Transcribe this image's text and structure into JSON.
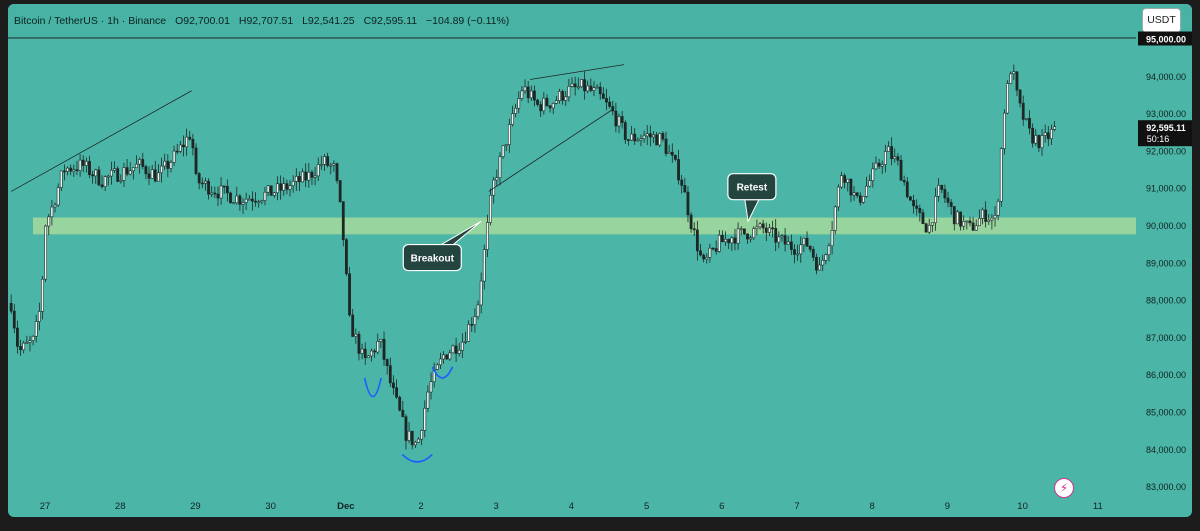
{
  "header": {
    "symbol": "Bitcoin / TetherUS · 1h · Binance",
    "open": "O92,700.01",
    "high": "H92,707.51",
    "low": "L92,541.25",
    "close": "C92,595.11",
    "change": "−104.89 (−0.11%)",
    "currency_button": "USDT"
  },
  "annotations": {
    "breakout": "Breakout",
    "retest": "Retest"
  },
  "price_marker": {
    "price": "92,595.11",
    "countdown": "50:16"
  },
  "colors": {
    "background": "#4bb6a8",
    "zone": "#a6d99b",
    "candle": "#1d2724",
    "curve": "#1f5cff",
    "price_label_bg": "#111111"
  },
  "icons": {
    "flash": "flash-icon"
  },
  "chart_data": {
    "type": "candlestick",
    "symbol": "Bitcoin / TetherUS",
    "interval": "1h",
    "exchange": "Binance",
    "currency": "USDT",
    "ylim": [
      82800,
      95300
    ],
    "yticks": [
      95000,
      94000,
      93000,
      92000,
      91000,
      90000,
      89000,
      88000,
      87000,
      86000,
      85000,
      84000,
      83000
    ],
    "ytick_labels": [
      "95,000.00",
      "94,000.00",
      "93,000.00",
      "92,000.00",
      "91,000.00",
      "90,000.00",
      "89,000.00",
      "88,000.00",
      "87,000.00",
      "86,000.00",
      "85,000.00",
      "84,000.00",
      "83,000.00"
    ],
    "xlim": [
      26.55,
      11.45
    ],
    "x_ticks": [
      {
        "label": "27",
        "day": 0
      },
      {
        "label": "28",
        "day": 1
      },
      {
        "label": "29",
        "day": 2
      },
      {
        "label": "30",
        "day": 3
      },
      {
        "label": "Dec",
        "day": 4
      },
      {
        "label": "2",
        "day": 5
      },
      {
        "label": "3",
        "day": 6
      },
      {
        "label": "4",
        "day": 7
      },
      {
        "label": "5",
        "day": 8
      },
      {
        "label": "6",
        "day": 9
      },
      {
        "label": "7",
        "day": 10
      },
      {
        "label": "8",
        "day": 11
      },
      {
        "label": "9",
        "day": 12
      },
      {
        "label": "10",
        "day": 13
      },
      {
        "label": "11",
        "day": 14
      }
    ],
    "last_price": 92595.11,
    "support_zone": [
      89750,
      90200
    ],
    "price_path": [
      [
        -0.45,
        87900
      ],
      [
        -0.35,
        86600
      ],
      [
        -0.15,
        86900
      ],
      [
        -0.05,
        87900
      ],
      [
        0.0,
        90000
      ],
      [
        0.1,
        90500
      ],
      [
        0.25,
        91500
      ],
      [
        0.5,
        91600
      ],
      [
        0.75,
        91200
      ],
      [
        1.0,
        91400
      ],
      [
        1.25,
        91600
      ],
      [
        1.5,
        91300
      ],
      [
        1.75,
        91900
      ],
      [
        1.95,
        92500
      ],
      [
        2.0,
        91200
      ],
      [
        2.3,
        90900
      ],
      [
        2.6,
        90700
      ],
      [
        2.9,
        90800
      ],
      [
        3.2,
        91000
      ],
      [
        3.5,
        91300
      ],
      [
        3.7,
        91700
      ],
      [
        3.85,
        91500
      ],
      [
        3.95,
        90100
      ],
      [
        4.05,
        87400
      ],
      [
        4.25,
        86300
      ],
      [
        4.45,
        86900
      ],
      [
        4.6,
        85700
      ],
      [
        4.8,
        84400
      ],
      [
        4.95,
        84100
      ],
      [
        5.1,
        85600
      ],
      [
        5.3,
        86500
      ],
      [
        5.55,
        86900
      ],
      [
        5.75,
        87800
      ],
      [
        5.85,
        89400
      ],
      [
        5.95,
        91000
      ],
      [
        6.15,
        92400
      ],
      [
        6.35,
        93700
      ],
      [
        6.55,
        93200
      ],
      [
        6.75,
        93300
      ],
      [
        6.95,
        93600
      ],
      [
        7.15,
        93700
      ],
      [
        7.35,
        93500
      ],
      [
        7.55,
        93000
      ],
      [
        7.75,
        92300
      ],
      [
        8.0,
        92400
      ],
      [
        8.2,
        92300
      ],
      [
        8.45,
        91300
      ],
      [
        8.6,
        90000
      ],
      [
        8.75,
        88900
      ],
      [
        8.95,
        89500
      ],
      [
        9.15,
        89700
      ],
      [
        9.35,
        89800
      ],
      [
        9.55,
        89900
      ],
      [
        9.75,
        89600
      ],
      [
        9.95,
        89400
      ],
      [
        10.15,
        89500
      ],
      [
        10.3,
        88800
      ],
      [
        10.45,
        89800
      ],
      [
        10.6,
        91500
      ],
      [
        10.8,
        90600
      ],
      [
        11.0,
        91300
      ],
      [
        11.2,
        92000
      ],
      [
        11.35,
        91600
      ],
      [
        11.55,
        90400
      ],
      [
        11.75,
        89900
      ],
      [
        11.9,
        91000
      ],
      [
        12.1,
        90200
      ],
      [
        12.3,
        89900
      ],
      [
        12.5,
        90300
      ],
      [
        12.65,
        90100
      ],
      [
        12.75,
        93000
      ],
      [
        12.85,
        94300
      ],
      [
        12.95,
        93200
      ],
      [
        13.1,
        92400
      ],
      [
        13.25,
        92200
      ],
      [
        13.45,
        92600
      ]
    ],
    "trendlines": [
      {
        "from": [
          -0.45,
          90900
        ],
        "to": [
          1.95,
          93600
        ]
      },
      {
        "from": [
          6.45,
          93900
        ],
        "to": [
          7.7,
          94300
        ]
      },
      {
        "from": [
          5.9,
          90900
        ],
        "to": [
          7.55,
          93100
        ]
      }
    ],
    "labels": [
      {
        "text": "Breakout",
        "at": [
          5.15,
          89100
        ],
        "points_to": [
          5.8,
          90100
        ]
      },
      {
        "text": "Retest",
        "at": [
          9.4,
          91000
        ],
        "points_to": [
          9.35,
          90100
        ]
      }
    ]
  }
}
